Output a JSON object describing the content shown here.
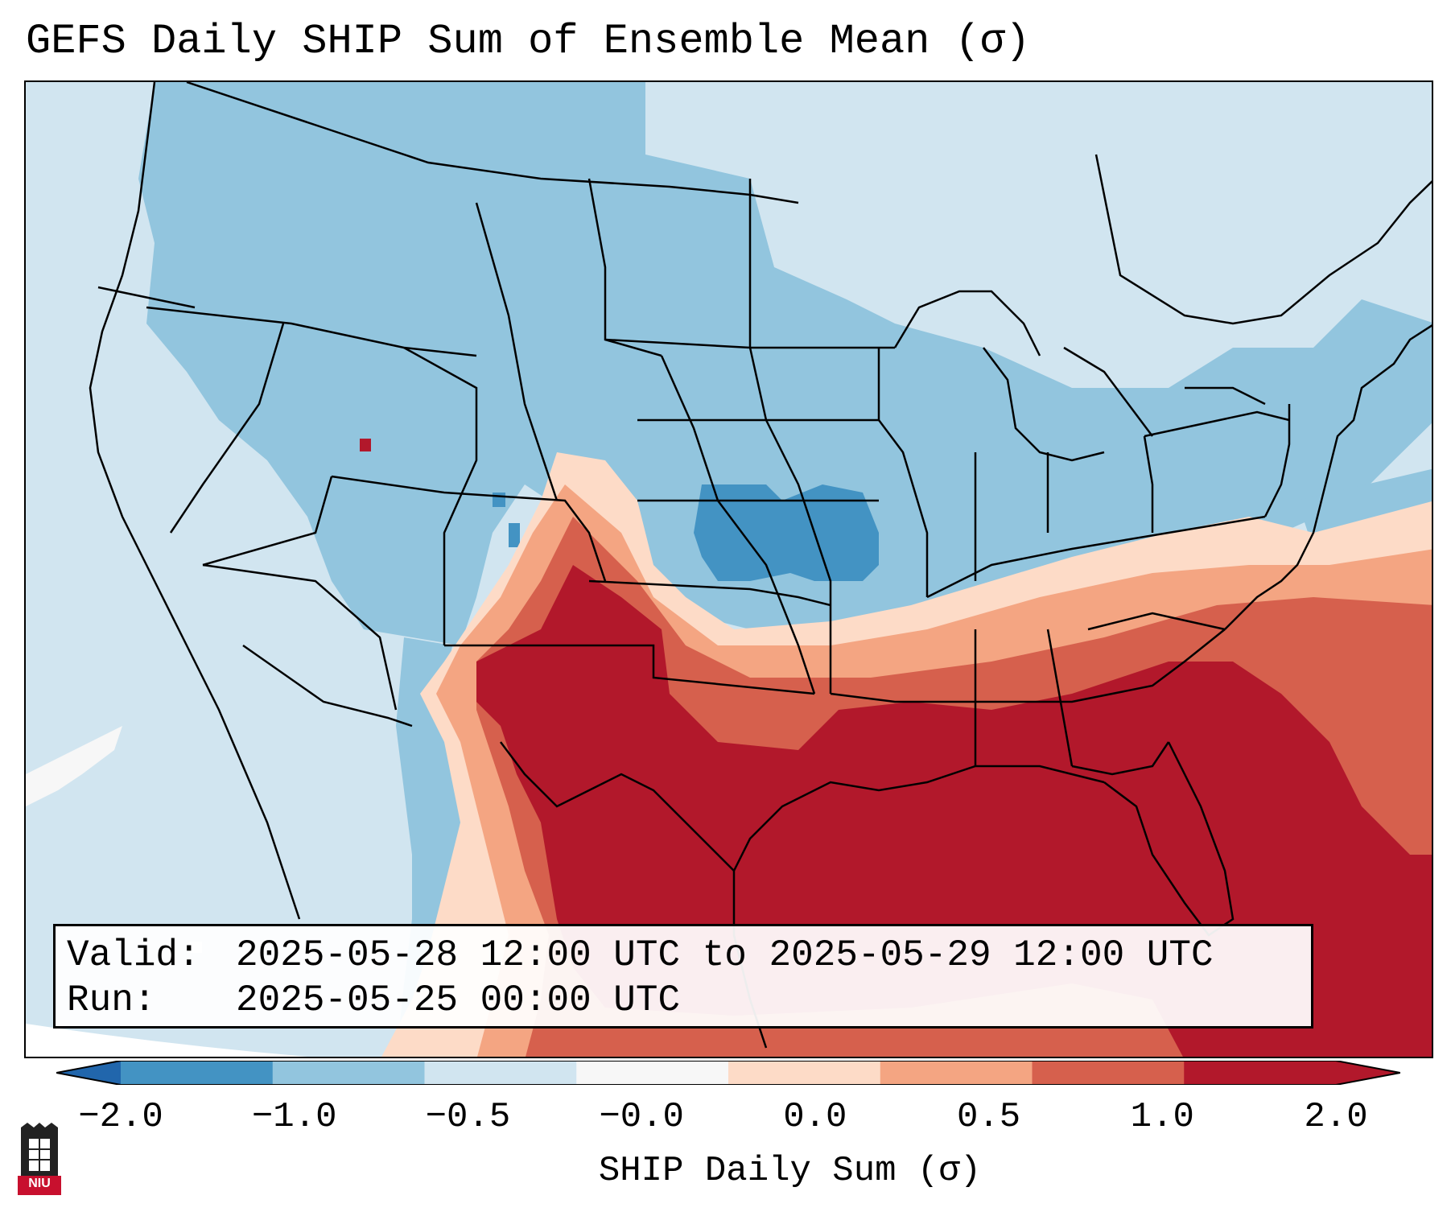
{
  "title": "GEFS Daily SHIP Sum of Ensemble Mean (σ)",
  "info": {
    "valid_label": "Valid:",
    "valid_value": "2025-05-28 12:00 UTC to 2025-05-29 12:00 UTC",
    "run_label": "Run:",
    "run_value": "2025-05-25 00:00 UTC"
  },
  "colorbar": {
    "label": "SHIP Daily Sum (σ)",
    "ticks": [
      "−2.0",
      "−1.0",
      "−0.5",
      "−0.0",
      "0.0",
      "0.5",
      "1.0",
      "2.0"
    ],
    "colors": [
      "#4393c3",
      "#92c5de",
      "#d1e5f0",
      "#f7f7f7",
      "#fddbc7",
      "#f4a582",
      "#d6604d",
      "#b2182b"
    ],
    "extend_low_color": "#2166ac",
    "extend_high_color": "#b2182b"
  },
  "logo": {
    "name": "NIU",
    "text": "NIU"
  }
}
